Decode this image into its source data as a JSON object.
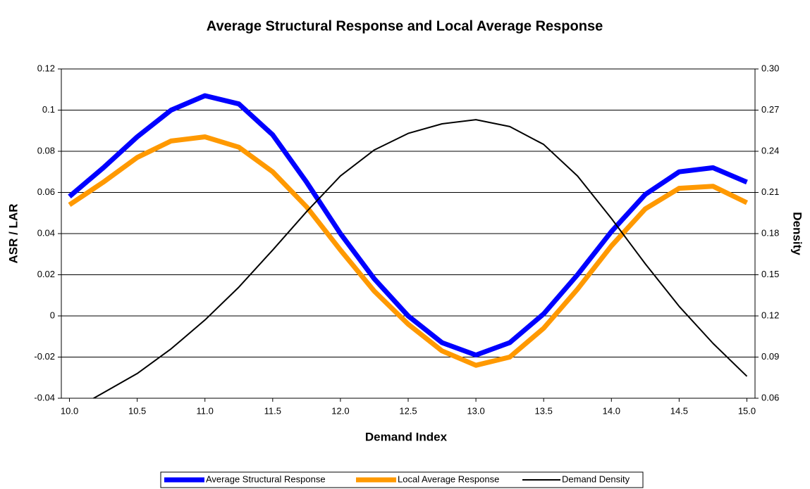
{
  "chart_data": {
    "type": "line",
    "title": "Average Structural Response and Local Average Response",
    "x_label": "Demand Index",
    "y_label": "ASR / LAR",
    "y2_label": "Density",
    "x": [
      10.0,
      10.25,
      10.5,
      10.75,
      11.0,
      11.25,
      11.5,
      11.75,
      12.0,
      12.25,
      12.5,
      12.75,
      13.0,
      13.25,
      13.5,
      13.75,
      14.0,
      14.25,
      14.5,
      14.75,
      15.0
    ],
    "series": [
      {
        "name": "Average Structural Response",
        "color": "#0000ff",
        "values": [
          0.058,
          0.072,
          0.087,
          0.1,
          0.107,
          0.103,
          0.088,
          0.065,
          0.04,
          0.018,
          0.0,
          -0.013,
          -0.019,
          -0.013,
          0.001,
          0.02,
          0.041,
          0.059,
          0.07,
          0.072,
          0.065
        ]
      },
      {
        "name": "Local Average Response",
        "color": "#ff9900",
        "values": [
          0.054,
          0.065,
          0.077,
          0.085,
          0.087,
          0.082,
          0.07,
          0.053,
          0.032,
          0.012,
          -0.004,
          -0.017,
          -0.024,
          -0.02,
          -0.006,
          0.013,
          0.034,
          0.052,
          0.062,
          0.063,
          0.055
        ]
      },
      {
        "name": "Demand Density",
        "color": "#000000",
        "axis": "y2",
        "values": [
          0.05,
          0.064,
          0.078,
          0.096,
          0.117,
          0.141,
          0.168,
          0.196,
          0.222,
          0.241,
          0.253,
          0.26,
          0.263,
          0.258,
          0.245,
          0.222,
          0.191,
          0.158,
          0.127,
          0.1,
          0.076
        ]
      }
    ],
    "xlim": [
      9.94,
      15.06
    ],
    "xticks": [
      {
        "value": 10,
        "label": "10.0"
      },
      10.5,
      {
        "value": 11,
        "label": "11.0"
      },
      11.5,
      {
        "value": 12,
        "label": "12.0"
      },
      12.5,
      {
        "value": 13,
        "label": "13.0"
      },
      13.5,
      {
        "value": 14,
        "label": "14.0"
      },
      14.5,
      {
        "value": 15,
        "label": "15.0"
      }
    ],
    "ylim": [
      -0.04,
      0.12
    ],
    "yticks": [
      -0.04,
      -0.02,
      0,
      0.02,
      0.04,
      0.06,
      0.08,
      0.1,
      0.12
    ],
    "y2lim": [
      0.06,
      0.3
    ],
    "y2ticks": [
      0.06,
      0.09,
      0.12,
      0.15,
      0.18,
      0.21,
      0.24,
      0.27,
      {
        "value": 0.3,
        "label": "0.30"
      }
    ],
    "grid": true,
    "legend": "bottom"
  }
}
